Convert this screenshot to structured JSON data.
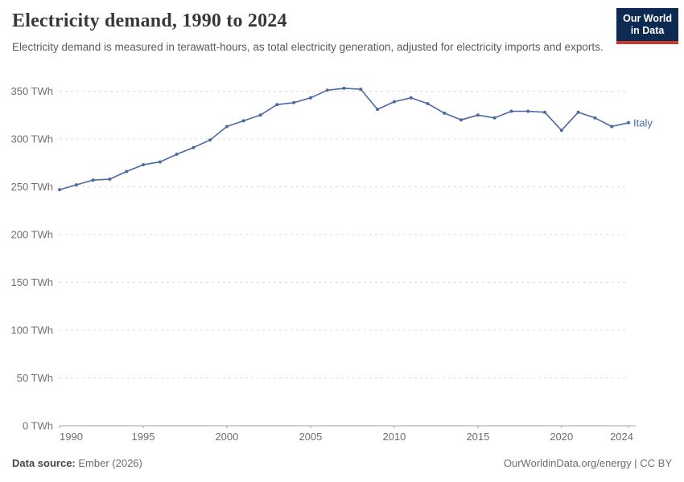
{
  "header": {
    "title": "Electricity demand, 1990 to 2024",
    "subtitle": "Electricity demand is measured in terawatt-hours, as total electricity generation, adjusted for electricity imports and exports.",
    "logo": {
      "line1": "Our World",
      "line2": "in Data"
    }
  },
  "chart_data": {
    "type": "line",
    "title": "Electricity demand, 1990 to 2024",
    "entity": "Italy",
    "unit": "TWh",
    "x": [
      1990,
      1991,
      1992,
      1993,
      1994,
      1995,
      1996,
      1997,
      1998,
      1999,
      2000,
      2001,
      2002,
      2003,
      2004,
      2005,
      2006,
      2007,
      2008,
      2009,
      2010,
      2011,
      2012,
      2013,
      2014,
      2015,
      2016,
      2017,
      2018,
      2019,
      2020,
      2021,
      2022,
      2023,
      2024
    ],
    "values": [
      247,
      252,
      257,
      258,
      266,
      273,
      276,
      284,
      291,
      299,
      313,
      319,
      325,
      336,
      338,
      343,
      351,
      353,
      352,
      331,
      339,
      343,
      337,
      327,
      320,
      325,
      322,
      329,
      329,
      328,
      309,
      328,
      322,
      313,
      317
    ],
    "ylim": [
      0,
      350
    ],
    "ytick_step": 50,
    "ytick_format": "{v} TWh",
    "xticks": [
      1990,
      1995,
      2000,
      2005,
      2010,
      2015,
      2020,
      2024
    ],
    "grid": "horizontal-dashed",
    "legend_position": "end-of-line",
    "line_color": "#4c69a5",
    "tick_label_color": "#6e6e6e"
  },
  "footer": {
    "source_label": "Data source:",
    "source_value": "Ember (2026)",
    "url": "OurWorldinData.org/energy",
    "divider": "|",
    "license": "CC BY"
  }
}
